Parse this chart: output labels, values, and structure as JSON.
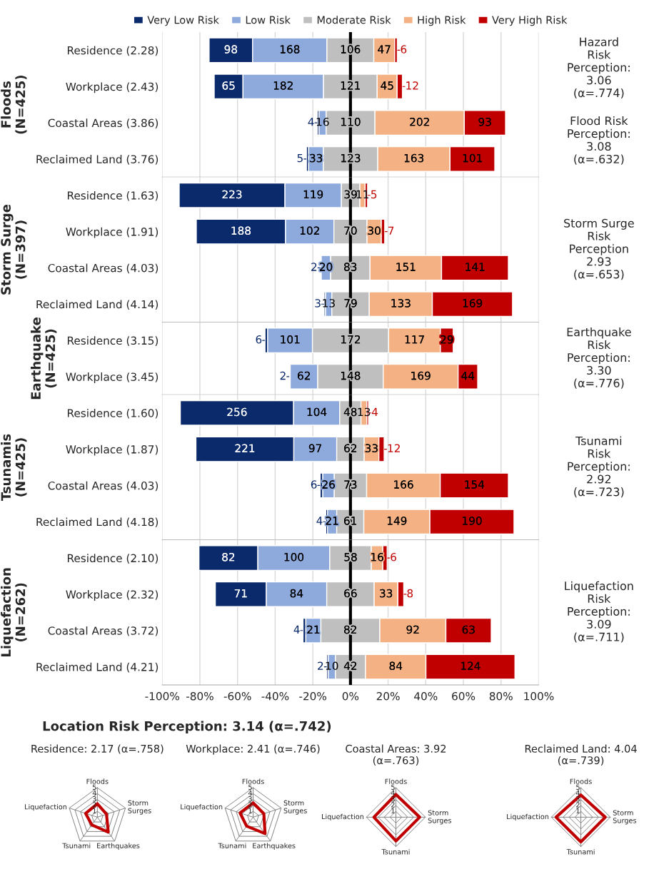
{
  "chart_data": [
    {
      "type": "bar",
      "orientation": "horizontal",
      "ylabel": "Floods\n(N=425)",
      "categories": [
        "Residence (2.28)",
        "Workplace (2.43)",
        "Coastal Areas (3.86)",
        "Reclaimed Land (3.76)"
      ],
      "series": [
        {
          "name": "Very Low Risk",
          "color": "#0b2a6b",
          "base": [
            -75.1,
            -72.4,
            -17.6,
            -23.4
          ],
          "values": [
            23.1,
            15.3,
            0.9,
            1.2
          ]
        },
        {
          "name": "Low Risk",
          "color": "#8eaadc",
          "base": [
            -52.0,
            -57.1,
            -16.7,
            -22.2
          ],
          "values": [
            39.5,
            42.8,
            3.8,
            7.8
          ]
        },
        {
          "name": "Moderate Risk",
          "color": "#bfbfbf",
          "base": [
            -12.5,
            -14.3,
            -12.9,
            -14.4
          ],
          "values": [
            24.9,
            28.5,
            25.9,
            28.9
          ]
        },
        {
          "name": "High Risk",
          "color": "#f4b183",
          "base": [
            12.4,
            14.2,
            13.0,
            14.5
          ],
          "values": [
            11.1,
            10.6,
            47.5,
            38.4
          ]
        },
        {
          "name": "Very High Risk",
          "color": "#c00000",
          "base": [
            23.5,
            24.8,
            60.5,
            52.9
          ],
          "values": [
            1.4,
            2.8,
            21.9,
            23.8
          ]
        }
      ],
      "xlim": [
        -100,
        100
      ],
      "xticks": [
        {
          "value": -100,
          "label": null
        },
        {
          "value": -80,
          "label": null
        },
        {
          "value": -60,
          "label": null
        },
        {
          "value": -40,
          "label": null
        },
        {
          "value": -20,
          "label": null
        },
        {
          "value": 0,
          "label": null
        },
        {
          "value": 20,
          "label": null
        },
        {
          "value": 40,
          "label": null
        },
        {
          "value": 60,
          "label": null
        },
        {
          "value": 80,
          "label": null
        },
        {
          "value": 100,
          "label": null
        }
      ],
      "grid": "x",
      "legend": "top",
      "tick_labels": "y",
      "ref_lines": [
        {
          "axis": "x",
          "value": 0,
          "color": "#000000"
        }
      ],
      "annotations": [
        "Hazard\nRisk\nPerception:\n3.06\n(α=.774)",
        "Flood Risk\nPerception:\n3.08\n(α=.632)",
        "98",
        "168",
        "106",
        "47",
        "6",
        "65",
        "182",
        "121",
        "45",
        "12",
        "4",
        "16",
        "110",
        "202",
        "93",
        "5",
        "33",
        "123",
        "163",
        "101"
      ]
    },
    {
      "type": "bar",
      "orientation": "horizontal",
      "ylabel": "Storm Surge\n(N=397)",
      "categories": [
        "Residence (1.63)",
        "Workplace (1.91)",
        "Coastal Areas (4.03)",
        "Reclaimed Land (4.14)"
      ],
      "series": [
        {
          "color": "#0b2a6b",
          "base": [
            -91.0,
            -81.9,
            -16.0,
            -14.0
          ],
          "values": [
            56.2,
            47.4,
            0.5,
            0.8
          ]
        },
        {
          "color": "#8eaadc",
          "base": [
            -34.8,
            -34.5,
            -15.5,
            -13.2
          ],
          "values": [
            30.0,
            25.7,
            5.0,
            3.3
          ]
        },
        {
          "color": "#bfbfbf",
          "base": [
            -4.8,
            -8.8,
            -10.5,
            -9.9
          ],
          "values": [
            9.8,
            17.6,
            20.9,
            19.9
          ]
        },
        {
          "color": "#f4b183",
          "base": [
            5.0,
            8.8,
            10.4,
            10.0
          ],
          "values": [
            2.8,
            7.6,
            38.0,
            33.5
          ]
        },
        {
          "color": "#c00000",
          "base": [
            7.8,
            16.4,
            48.4,
            43.5
          ],
          "values": [
            1.3,
            1.8,
            35.5,
            42.6
          ]
        }
      ],
      "xlim": [
        -100,
        100
      ],
      "xticks": [
        {
          "value": -100,
          "label": null
        },
        {
          "value": -80,
          "label": null
        },
        {
          "value": -60,
          "label": null
        },
        {
          "value": -40,
          "label": null
        },
        {
          "value": -20,
          "label": null
        },
        {
          "value": 0,
          "label": null
        },
        {
          "value": 20,
          "label": null
        },
        {
          "value": 40,
          "label": null
        },
        {
          "value": 60,
          "label": null
        },
        {
          "value": 80,
          "label": null
        },
        {
          "value": 100,
          "label": null
        }
      ],
      "grid": "x",
      "tick_labels": "y",
      "ref_lines": [
        {
          "axis": "x",
          "value": 0,
          "color": "#000000"
        }
      ],
      "annotations": [
        "Storm Surge\nRisk\nPerception\n2.93\n(α=.653)",
        "223",
        "119",
        "39",
        "11",
        "5",
        "188",
        "102",
        "70",
        "30",
        "7",
        "2",
        "20",
        "83",
        "151",
        "141",
        "3",
        "13",
        "79",
        "133",
        "169"
      ]
    },
    {
      "type": "bar",
      "orientation": "horizontal",
      "ylabel": "Earthquake\n(N=425)",
      "categories": [
        "Residence (3.15)",
        "Workplace (3.45)"
      ],
      "series": [
        {
          "color": "#0b2a6b",
          "base": [
            -45.4,
            -32.5
          ],
          "values": [
            1.4,
            0.5
          ]
        },
        {
          "color": "#8eaadc",
          "base": [
            -44.0,
            -32.0
          ],
          "values": [
            23.8,
            14.6
          ]
        },
        {
          "color": "#bfbfbf",
          "base": [
            -20.2,
            -17.4
          ],
          "values": [
            40.5,
            34.8
          ]
        },
        {
          "color": "#f4b183",
          "base": [
            20.3,
            17.4
          ],
          "values": [
            27.5,
            39.8
          ]
        },
        {
          "color": "#c00000",
          "base": [
            47.8,
            57.2
          ],
          "values": [
            6.8,
            10.4
          ]
        }
      ],
      "xlim": [
        -100,
        100
      ],
      "xticks": [
        {
          "value": -100,
          "label": null
        },
        {
          "value": -80,
          "label": null
        },
        {
          "value": -60,
          "label": null
        },
        {
          "value": -40,
          "label": null
        },
        {
          "value": -20,
          "label": null
        },
        {
          "value": 0,
          "label": null
        },
        {
          "value": 20,
          "label": null
        },
        {
          "value": 40,
          "label": null
        },
        {
          "value": 60,
          "label": null
        },
        {
          "value": 80,
          "label": null
        },
        {
          "value": 100,
          "label": null
        }
      ],
      "grid": "x",
      "tick_labels": "y",
      "ref_lines": [
        {
          "axis": "x",
          "value": 0,
          "color": "#000000"
        }
      ],
      "annotations": [
        "Earthquake\nRisk\nPerception:\n3.30\n(α=.776)",
        "6",
        "101",
        "172",
        "117",
        "29",
        "2",
        "62",
        "148",
        "169",
        "44"
      ]
    },
    {
      "type": "bar",
      "orientation": "horizontal",
      "ylabel": "Tsunamis\n(N=425)",
      "categories": [
        "Residence (1.60)",
        "Workplace (1.87)",
        "Coastal Areas (4.03)",
        "Reclaimed Land (4.18)"
      ],
      "series": [
        {
          "color": "#0b2a6b",
          "base": [
            -90.4,
            -82.1,
            -16.1,
            -13.1
          ],
          "values": [
            60.2,
            52.0,
            1.4,
            0.9
          ]
        },
        {
          "color": "#8eaadc",
          "base": [
            -30.2,
            -30.1,
            -14.7,
            -12.2
          ],
          "values": [
            24.5,
            22.8,
            6.1,
            4.9
          ]
        },
        {
          "color": "#bfbfbf",
          "base": [
            -5.7,
            -7.3,
            -8.6,
            -7.3
          ],
          "values": [
            11.3,
            14.6,
            17.2,
            14.4
          ]
        },
        {
          "color": "#f4b183",
          "base": [
            5.6,
            7.3,
            8.6,
            7.1
          ],
          "values": [
            3.1,
            7.8,
            39.1,
            35.1
          ]
        },
        {
          "color": "#c00000",
          "base": [
            8.7,
            15.1,
            47.7,
            42.2
          ],
          "values": [
            0.9,
            2.8,
            36.2,
            44.7
          ]
        }
      ],
      "xlim": [
        -100,
        100
      ],
      "xticks": [
        {
          "value": -100,
          "label": null
        },
        {
          "value": -80,
          "label": null
        },
        {
          "value": -60,
          "label": null
        },
        {
          "value": -40,
          "label": null
        },
        {
          "value": -20,
          "label": null
        },
        {
          "value": 0,
          "label": null
        },
        {
          "value": 20,
          "label": null
        },
        {
          "value": 40,
          "label": null
        },
        {
          "value": 60,
          "label": null
        },
        {
          "value": 80,
          "label": null
        },
        {
          "value": 100,
          "label": null
        }
      ],
      "grid": "x",
      "tick_labels": "y",
      "ref_lines": [
        {
          "axis": "x",
          "value": 0,
          "color": "#000000"
        }
      ],
      "annotations": [
        "Tsunami\nRisk\nPerception:\n2.92\n(α=.723)",
        "256",
        "104",
        "48",
        "13",
        "4",
        "221",
        "97",
        "62",
        "33",
        "12",
        "6",
        "26",
        "73",
        "166",
        "154",
        "4",
        "21",
        "61",
        "149",
        "190"
      ]
    },
    {
      "type": "bar",
      "orientation": "horizontal",
      "ylabel": "Liquefaction\n(N=262)",
      "categories": [
        "Residence (2.10)",
        "Workplace (2.32)",
        "Coastal Areas (3.72)",
        "Reclaimed Land (4.21)"
      ],
      "series": [
        {
          "color": "#0b2a6b",
          "base": [
            -80.5,
            -71.8,
            -25.2,
            -12.6
          ],
          "values": [
            31.3,
            27.1,
            1.5,
            0.8
          ]
        },
        {
          "color": "#8eaadc",
          "base": [
            -49.2,
            -44.7,
            -23.7,
            -11.8
          ],
          "values": [
            38.2,
            32.1,
            8.0,
            3.8
          ]
        },
        {
          "color": "#bfbfbf",
          "base": [
            -11.0,
            -12.6,
            -15.7,
            -8.0
          ],
          "values": [
            22.1,
            25.2,
            31.3,
            16.0
          ]
        },
        {
          "color": "#f4b183",
          "base": [
            11.1,
            12.6,
            15.6,
            8.0
          ],
          "values": [
            6.1,
            12.6,
            35.1,
            32.1
          ]
        },
        {
          "color": "#c00000",
          "base": [
            17.2,
            25.2,
            50.7,
            40.1
          ],
          "values": [
            2.3,
            3.1,
            24.1,
            47.3
          ]
        }
      ],
      "xlim": [
        -100,
        100
      ],
      "xticks": [
        {
          "value": -100,
          "label": "-100%"
        },
        {
          "value": -80,
          "label": "-80%"
        },
        {
          "value": -60,
          "label": "-60%"
        },
        {
          "value": -40,
          "label": "-40%"
        },
        {
          "value": -20,
          "label": "-20%"
        },
        {
          "value": 0,
          "label": "0%"
        },
        {
          "value": 20,
          "label": "20%"
        },
        {
          "value": 40,
          "label": "40%"
        },
        {
          "value": 60,
          "label": "60%"
        },
        {
          "value": 80,
          "label": "80%"
        },
        {
          "value": 100,
          "label": "100%"
        }
      ],
      "grid": "x",
      "ref_lines": [
        {
          "axis": "x",
          "value": 0,
          "color": "#000000"
        }
      ],
      "annotations": [
        "Liquefaction\nRisk\nPerception:\n3.09\n(α=.711)",
        "82",
        "100",
        "58",
        "16",
        "6",
        "71",
        "84",
        "66",
        "33",
        "8",
        "4",
        "21",
        "82",
        "92",
        "63",
        "2",
        "10",
        "42",
        "84",
        "124"
      ]
    },
    {
      "type": "radar",
      "title": "Residence: 2.17 (α=.758)",
      "categories": [
        "Floods",
        "Storm\nSurges",
        "Earthquakes",
        "Tsunami",
        "Liquefaction"
      ],
      "series": [
        {
          "color": "#c00000",
          "values": [
            2.28,
            1.63,
            3.15,
            1.6,
            2.1
          ]
        }
      ],
      "ylim": [
        0,
        5
      ],
      "yticks": [
        1,
        2,
        3,
        4,
        5
      ],
      "grid": true,
      "annotations": [
        "Location Risk Perception: 3.14 (α=.742)"
      ]
    },
    {
      "type": "radar",
      "title": "Workplace: 2.41 (α=.746)",
      "categories": [
        "Floods",
        "Storm\nSurges",
        "Earthquakes",
        "Tsunami",
        "Liquefaction"
      ],
      "series": [
        {
          "color": "#c00000",
          "values": [
            2.43,
            1.91,
            3.45,
            1.87,
            2.32
          ]
        }
      ],
      "ylim": [
        0,
        5
      ],
      "yticks": [
        1,
        2,
        3,
        4,
        5
      ],
      "grid": true
    },
    {
      "type": "radar",
      "title": "Coastal Areas: 3.92\n(α=.763)",
      "categories": [
        "Floods",
        "Storm\nSurges",
        "Tsunami",
        "Liquefaction"
      ],
      "series": [
        {
          "color": "#c00000",
          "values": [
            3.86,
            4.03,
            4.03,
            3.72
          ]
        }
      ],
      "ylim": [
        0,
        5
      ],
      "yticks": [
        1,
        2,
        3,
        4,
        5
      ],
      "grid": true
    },
    {
      "type": "radar",
      "title": "Reclaimed Land: 4.04\n(α=.739)",
      "categories": [
        "Floods",
        "Storm\nSurges",
        "Tsunami",
        "Liquefaction"
      ],
      "series": [
        {
          "color": "#c00000",
          "values": [
            3.76,
            4.14,
            4.18,
            4.21
          ]
        }
      ],
      "ylim": [
        0,
        5
      ],
      "yticks": [
        1,
        2,
        3,
        4,
        5
      ],
      "grid": true
    }
  ]
}
